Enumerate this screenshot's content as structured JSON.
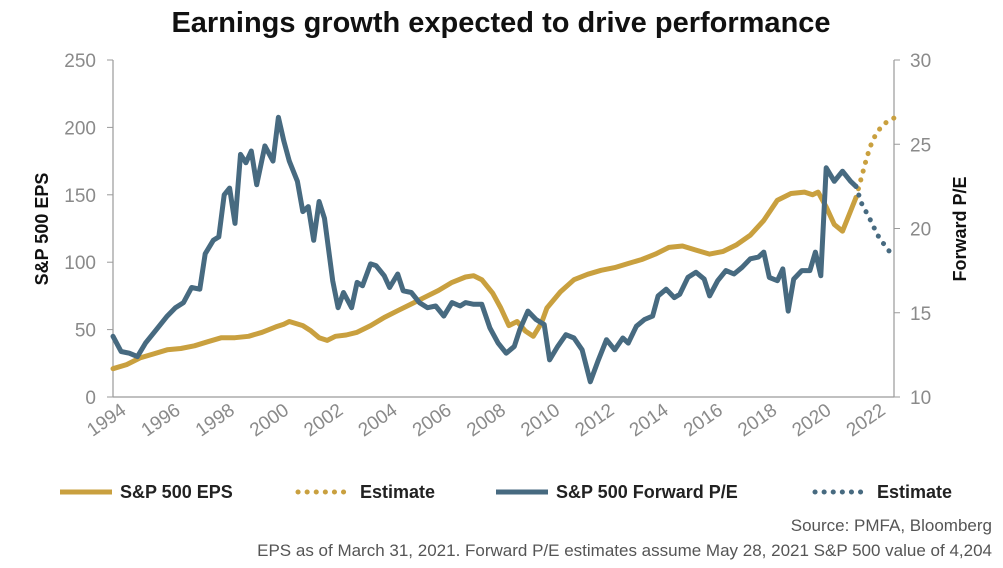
{
  "colors": {
    "eps": "#c9a03f",
    "pe": "#476a80",
    "axis": "#8a8a8a",
    "text": "#111111"
  },
  "chart_data": {
    "type": "line",
    "title": "Earnings growth expected to drive performance",
    "ylabel_left": "S&P 500 EPS",
    "ylabel_right": "Forward P/E",
    "xlim": [
      1994,
      2022.8
    ],
    "ylim_left": [
      0,
      250
    ],
    "ylim_right": [
      10,
      30
    ],
    "x_ticks": [
      "1994",
      "1996",
      "1998",
      "2000",
      "2002",
      "2004",
      "2006",
      "2008",
      "2010",
      "2012",
      "2014",
      "2016",
      "2018",
      "2020",
      "2022"
    ],
    "y_ticks_left": [
      "0",
      "50",
      "100",
      "150",
      "200",
      "250"
    ],
    "y_ticks_right": [
      "10",
      "15",
      "20",
      "25",
      "30"
    ],
    "grid": false,
    "legend_position": "bottom",
    "series": [
      {
        "name": "S&P 500 EPS",
        "axis": "left",
        "style": "solid",
        "color": "#c9a03f",
        "points": [
          [
            1994.0,
            21
          ],
          [
            1994.5,
            24
          ],
          [
            1995.0,
            29
          ],
          [
            1995.5,
            32
          ],
          [
            1996.0,
            35
          ],
          [
            1996.5,
            36
          ],
          [
            1997.0,
            38
          ],
          [
            1997.5,
            41
          ],
          [
            1998.0,
            44
          ],
          [
            1998.5,
            44
          ],
          [
            1999.0,
            45
          ],
          [
            1999.5,
            48
          ],
          [
            2000.0,
            52
          ],
          [
            2000.3,
            54
          ],
          [
            2000.5,
            56
          ],
          [
            2001.0,
            53
          ],
          [
            2001.3,
            49
          ],
          [
            2001.6,
            44
          ],
          [
            2001.9,
            42
          ],
          [
            2002.2,
            45
          ],
          [
            2002.6,
            46
          ],
          [
            2003.0,
            48
          ],
          [
            2003.5,
            53
          ],
          [
            2004.0,
            59
          ],
          [
            2004.5,
            64
          ],
          [
            2005.0,
            69
          ],
          [
            2005.5,
            74
          ],
          [
            2006.0,
            79
          ],
          [
            2006.5,
            85
          ],
          [
            2007.0,
            89
          ],
          [
            2007.3,
            90
          ],
          [
            2007.6,
            87
          ],
          [
            2008.0,
            77
          ],
          [
            2008.3,
            66
          ],
          [
            2008.6,
            53
          ],
          [
            2008.9,
            56
          ],
          [
            2009.2,
            49
          ],
          [
            2009.5,
            45
          ],
          [
            2009.8,
            55
          ],
          [
            2010.0,
            66
          ],
          [
            2010.5,
            78
          ],
          [
            2011.0,
            87
          ],
          [
            2011.5,
            91
          ],
          [
            2012.0,
            94
          ],
          [
            2012.5,
            96
          ],
          [
            2013.0,
            99
          ],
          [
            2013.5,
            102
          ],
          [
            2014.0,
            106
          ],
          [
            2014.5,
            111
          ],
          [
            2015.0,
            112
          ],
          [
            2015.5,
            109
          ],
          [
            2016.0,
            106
          ],
          [
            2016.5,
            108
          ],
          [
            2017.0,
            113
          ],
          [
            2017.5,
            120
          ],
          [
            2018.0,
            131
          ],
          [
            2018.5,
            146
          ],
          [
            2019.0,
            151
          ],
          [
            2019.5,
            152
          ],
          [
            2019.8,
            150
          ],
          [
            2020.0,
            152
          ],
          [
            2020.3,
            141
          ],
          [
            2020.6,
            128
          ],
          [
            2020.9,
            123
          ],
          [
            2021.2,
            138
          ],
          [
            2021.4,
            148
          ]
        ]
      },
      {
        "name": "Estimate",
        "axis": "left",
        "style": "dotted",
        "color": "#c9a03f",
        "points": [
          [
            2021.4,
            148
          ],
          [
            2021.6,
            163
          ],
          [
            2021.8,
            178
          ],
          [
            2022.0,
            190
          ],
          [
            2022.2,
            197
          ],
          [
            2022.4,
            202
          ],
          [
            2022.6,
            205
          ],
          [
            2022.8,
            207
          ]
        ]
      },
      {
        "name": "S&P 500 Forward P/E",
        "axis": "right",
        "style": "solid",
        "color": "#476a80",
        "points": [
          [
            1994.0,
            13.6
          ],
          [
            1994.3,
            12.7
          ],
          [
            1994.6,
            12.6
          ],
          [
            1994.9,
            12.4
          ],
          [
            1995.2,
            13.2
          ],
          [
            1995.6,
            14.0
          ],
          [
            1996.0,
            14.8
          ],
          [
            1996.3,
            15.3
          ],
          [
            1996.6,
            15.6
          ],
          [
            1996.9,
            16.5
          ],
          [
            1997.2,
            16.4
          ],
          [
            1997.4,
            18.5
          ],
          [
            1997.7,
            19.3
          ],
          [
            1997.9,
            19.5
          ],
          [
            1998.1,
            22.0
          ],
          [
            1998.3,
            22.4
          ],
          [
            1998.5,
            20.3
          ],
          [
            1998.7,
            24.4
          ],
          [
            1998.9,
            23.9
          ],
          [
            1999.1,
            24.6
          ],
          [
            1999.3,
            22.6
          ],
          [
            1999.6,
            24.9
          ],
          [
            1999.9,
            24.0
          ],
          [
            2000.1,
            26.6
          ],
          [
            2000.3,
            25.2
          ],
          [
            2000.5,
            24.0
          ],
          [
            2000.8,
            22.8
          ],
          [
            2001.0,
            21.0
          ],
          [
            2001.2,
            21.3
          ],
          [
            2001.4,
            19.3
          ],
          [
            2001.6,
            21.6
          ],
          [
            2001.8,
            20.6
          ],
          [
            2002.1,
            16.9
          ],
          [
            2002.3,
            15.3
          ],
          [
            2002.5,
            16.2
          ],
          [
            2002.8,
            15.3
          ],
          [
            2003.0,
            16.8
          ],
          [
            2003.2,
            16.6
          ],
          [
            2003.5,
            17.9
          ],
          [
            2003.7,
            17.8
          ],
          [
            2004.0,
            17.2
          ],
          [
            2004.2,
            16.5
          ],
          [
            2004.5,
            17.3
          ],
          [
            2004.7,
            16.3
          ],
          [
            2005.0,
            16.2
          ],
          [
            2005.3,
            15.6
          ],
          [
            2005.6,
            15.3
          ],
          [
            2005.9,
            15.4
          ],
          [
            2006.2,
            14.8
          ],
          [
            2006.5,
            15.6
          ],
          [
            2006.8,
            15.4
          ],
          [
            2007.0,
            15.6
          ],
          [
            2007.3,
            15.5
          ],
          [
            2007.6,
            15.5
          ],
          [
            2007.9,
            14.1
          ],
          [
            2008.2,
            13.2
          ],
          [
            2008.5,
            12.6
          ],
          [
            2008.8,
            13.0
          ],
          [
            2009.0,
            14.0
          ],
          [
            2009.3,
            15.1
          ],
          [
            2009.6,
            14.6
          ],
          [
            2009.9,
            14.3
          ],
          [
            2010.1,
            12.2
          ],
          [
            2010.4,
            13.0
          ],
          [
            2010.7,
            13.7
          ],
          [
            2011.0,
            13.5
          ],
          [
            2011.3,
            12.8
          ],
          [
            2011.6,
            10.9
          ],
          [
            2011.9,
            12.2
          ],
          [
            2012.2,
            13.4
          ],
          [
            2012.5,
            12.8
          ],
          [
            2012.8,
            13.5
          ],
          [
            2013.0,
            13.2
          ],
          [
            2013.3,
            14.2
          ],
          [
            2013.6,
            14.6
          ],
          [
            2013.9,
            14.8
          ],
          [
            2014.1,
            16.0
          ],
          [
            2014.4,
            16.4
          ],
          [
            2014.7,
            15.9
          ],
          [
            2014.9,
            16.1
          ],
          [
            2015.2,
            17.1
          ],
          [
            2015.5,
            17.4
          ],
          [
            2015.8,
            17.0
          ],
          [
            2016.0,
            16.0
          ],
          [
            2016.3,
            16.9
          ],
          [
            2016.6,
            17.5
          ],
          [
            2016.9,
            17.3
          ],
          [
            2017.2,
            17.7
          ],
          [
            2017.5,
            18.2
          ],
          [
            2017.8,
            18.3
          ],
          [
            2018.0,
            18.6
          ],
          [
            2018.2,
            17.1
          ],
          [
            2018.5,
            16.9
          ],
          [
            2018.7,
            17.6
          ],
          [
            2018.9,
            15.1
          ],
          [
            2019.1,
            17.0
          ],
          [
            2019.4,
            17.5
          ],
          [
            2019.7,
            17.5
          ],
          [
            2019.9,
            18.6
          ],
          [
            2020.1,
            17.2
          ],
          [
            2020.3,
            23.6
          ],
          [
            2020.6,
            22.8
          ],
          [
            2020.9,
            23.4
          ],
          [
            2021.2,
            22.8
          ],
          [
            2021.4,
            22.5
          ]
        ]
      },
      {
        "name": "Estimate",
        "axis": "right",
        "style": "dotted",
        "color": "#476a80",
        "points": [
          [
            2021.4,
            22.5
          ],
          [
            2021.6,
            21.5
          ],
          [
            2021.9,
            20.6
          ],
          [
            2022.2,
            19.6
          ],
          [
            2022.5,
            18.9
          ],
          [
            2022.8,
            18.3
          ]
        ]
      }
    ],
    "legend": [
      {
        "label": "S&P 500 EPS",
        "style": "solid",
        "color": "#c9a03f"
      },
      {
        "label": "Estimate",
        "style": "dotted",
        "color": "#c9a03f"
      },
      {
        "label": "S&P 500 Forward P/E",
        "style": "solid",
        "color": "#476a80"
      },
      {
        "label": "Estimate",
        "style": "dotted",
        "color": "#476a80"
      }
    ],
    "source": "Source: PMFA, Bloomberg",
    "footnote": "EPS as of March 31, 2021. Forward P/E estimates assume May 28, 2021 S&P 500 value of 4,204"
  }
}
